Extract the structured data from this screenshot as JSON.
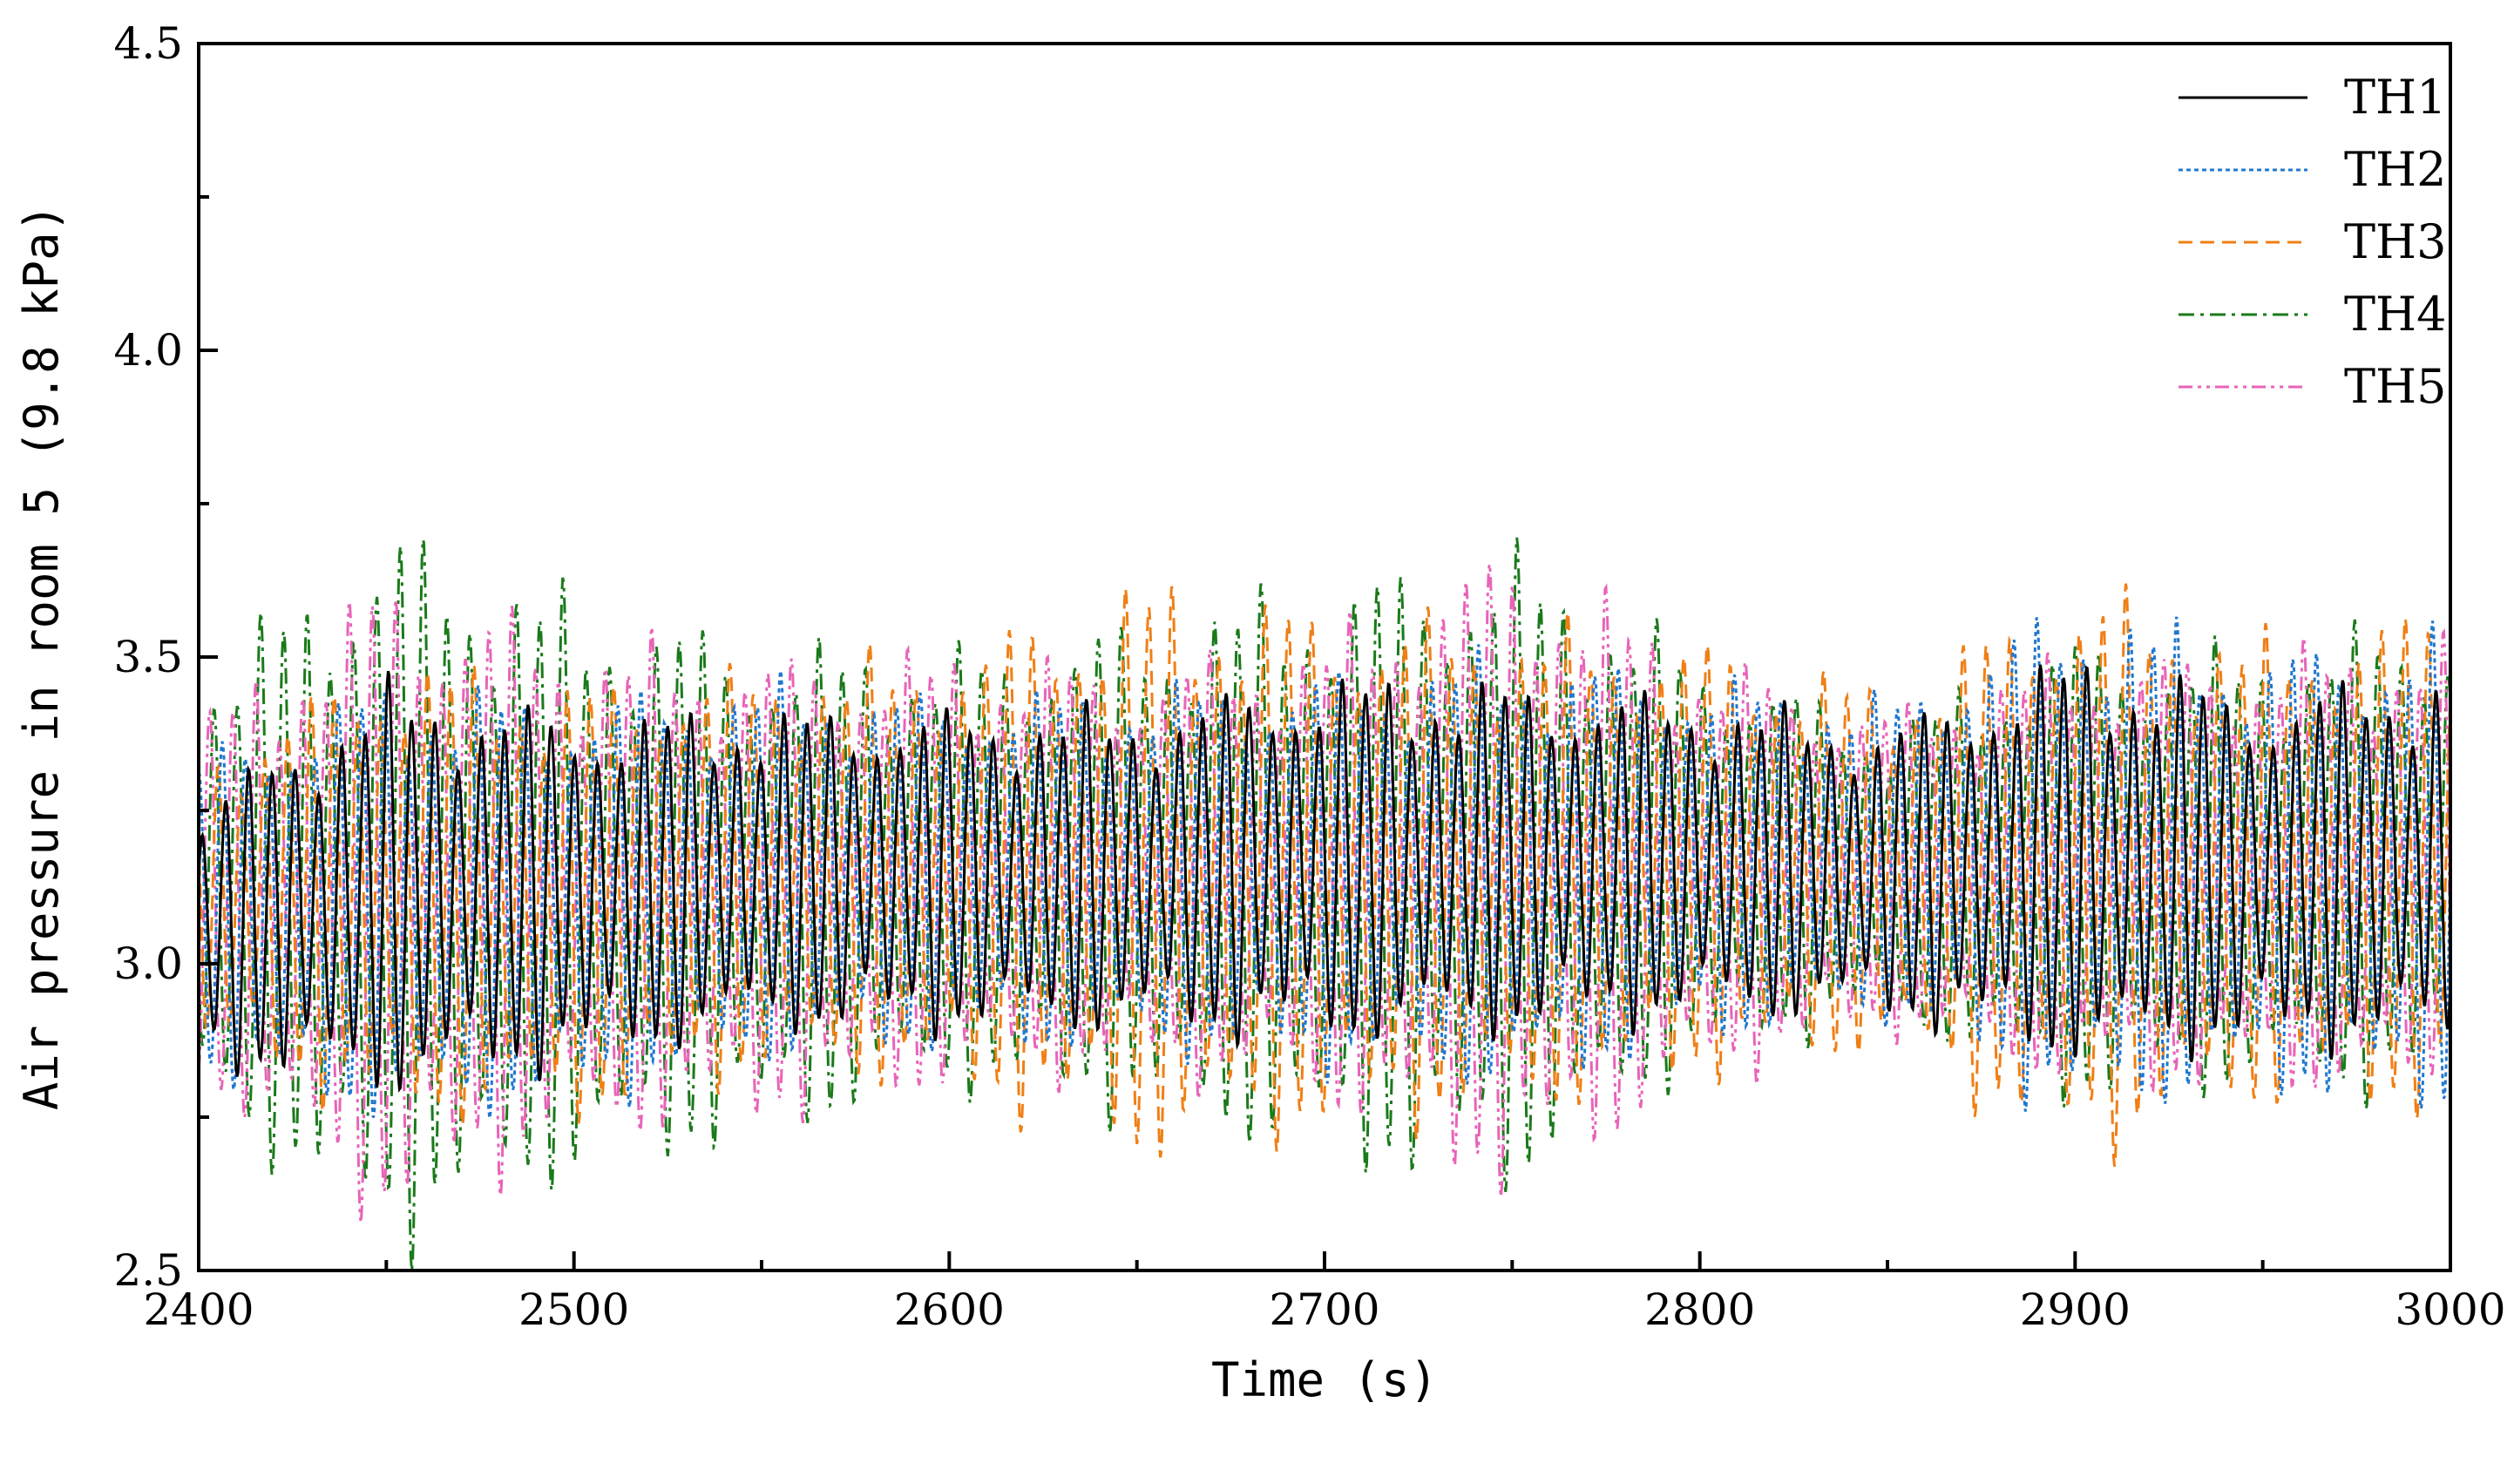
{
  "chart_data": {
    "type": "line",
    "title": "",
    "xlabel": "Time (s)",
    "ylabel": "Air pressure in room 5 (9.8 kPa)",
    "xlim": [
      2400,
      3000
    ],
    "ylim": [
      2.5,
      4.5
    ],
    "x_ticks": [
      2400,
      2500,
      2600,
      2700,
      2800,
      2900,
      3000
    ],
    "y_ticks": [
      2.5,
      3.0,
      3.5,
      4.0,
      4.5
    ],
    "x_tick_labels": [
      "2400",
      "2500",
      "2600",
      "2700",
      "2800",
      "2900",
      "3000"
    ],
    "y_tick_labels": [
      "2.5",
      "3.0",
      "3.5",
      "4.0",
      "4.5"
    ],
    "grid": false,
    "legend_position": "top-right",
    "period_s": 6.2,
    "series": [
      {
        "name": "TH1",
        "color": "#000000",
        "dash": "solid",
        "phase": 0.0,
        "envelope": [
          [
            2400,
            3.05,
            0.18
          ],
          [
            2450,
            3.12,
            0.28
          ],
          [
            2500,
            3.12,
            0.24
          ],
          [
            2550,
            3.15,
            0.22
          ],
          [
            2600,
            3.15,
            0.22
          ],
          [
            2650,
            3.15,
            0.22
          ],
          [
            2700,
            3.17,
            0.25
          ],
          [
            2750,
            3.17,
            0.24
          ],
          [
            2800,
            3.17,
            0.22
          ],
          [
            2850,
            3.15,
            0.2
          ],
          [
            2900,
            3.17,
            0.28
          ],
          [
            2950,
            3.15,
            0.24
          ],
          [
            3000,
            3.17,
            0.26
          ]
        ]
      },
      {
        "name": "TH2",
        "color": "#1f77d0",
        "dash": "dotted",
        "phase": 0.9,
        "envelope": [
          [
            2400,
            3.08,
            0.22
          ],
          [
            2450,
            3.1,
            0.3
          ],
          [
            2500,
            3.1,
            0.28
          ],
          [
            2550,
            3.15,
            0.26
          ],
          [
            2600,
            3.15,
            0.24
          ],
          [
            2650,
            3.15,
            0.25
          ],
          [
            2700,
            3.15,
            0.27
          ],
          [
            2750,
            3.15,
            0.3
          ],
          [
            2800,
            3.17,
            0.25
          ],
          [
            2850,
            3.17,
            0.22
          ],
          [
            2900,
            3.17,
            0.36
          ],
          [
            2950,
            3.15,
            0.3
          ],
          [
            3000,
            3.15,
            0.33
          ]
        ]
      },
      {
        "name": "TH3",
        "color": "#f07f15",
        "dash": "dashed",
        "phase": 2.0,
        "envelope": [
          [
            2400,
            3.1,
            0.2
          ],
          [
            2450,
            3.12,
            0.32
          ],
          [
            2500,
            3.1,
            0.3
          ],
          [
            2550,
            3.15,
            0.28
          ],
          [
            2600,
            3.15,
            0.3
          ],
          [
            2650,
            3.15,
            0.4
          ],
          [
            2700,
            3.15,
            0.36
          ],
          [
            2750,
            3.15,
            0.34
          ],
          [
            2800,
            3.17,
            0.3
          ],
          [
            2850,
            3.15,
            0.25
          ],
          [
            2900,
            3.15,
            0.4
          ],
          [
            2950,
            3.15,
            0.32
          ],
          [
            3000,
            3.17,
            0.35
          ]
        ]
      },
      {
        "name": "TH4",
        "color": "#1a7a1a",
        "dash": "dashdot",
        "phase": 3.1,
        "envelope": [
          [
            2400,
            3.12,
            0.3
          ],
          [
            2450,
            3.12,
            0.5
          ],
          [
            2500,
            3.12,
            0.4
          ],
          [
            2550,
            3.12,
            0.34
          ],
          [
            2600,
            3.15,
            0.3
          ],
          [
            2650,
            3.15,
            0.34
          ],
          [
            2700,
            3.15,
            0.4
          ],
          [
            2750,
            3.15,
            0.44
          ],
          [
            2800,
            3.17,
            0.28
          ],
          [
            2850,
            3.15,
            0.2
          ],
          [
            2900,
            3.15,
            0.32
          ],
          [
            2950,
            3.15,
            0.3
          ],
          [
            3000,
            3.17,
            0.34
          ]
        ]
      },
      {
        "name": "TH5",
        "color": "#e864b8",
        "dash": "dashdotdot",
        "phase": 4.3,
        "envelope": [
          [
            2400,
            3.1,
            0.25
          ],
          [
            2450,
            3.1,
            0.45
          ],
          [
            2500,
            3.12,
            0.35
          ],
          [
            2550,
            3.12,
            0.32
          ],
          [
            2600,
            3.15,
            0.3
          ],
          [
            2650,
            3.15,
            0.28
          ],
          [
            2700,
            3.15,
            0.32
          ],
          [
            2750,
            3.15,
            0.45
          ],
          [
            2800,
            3.15,
            0.3
          ],
          [
            2850,
            3.15,
            0.22
          ],
          [
            2900,
            3.15,
            0.3
          ],
          [
            2950,
            3.15,
            0.3
          ],
          [
            3000,
            3.15,
            0.32
          ]
        ]
      }
    ]
  }
}
